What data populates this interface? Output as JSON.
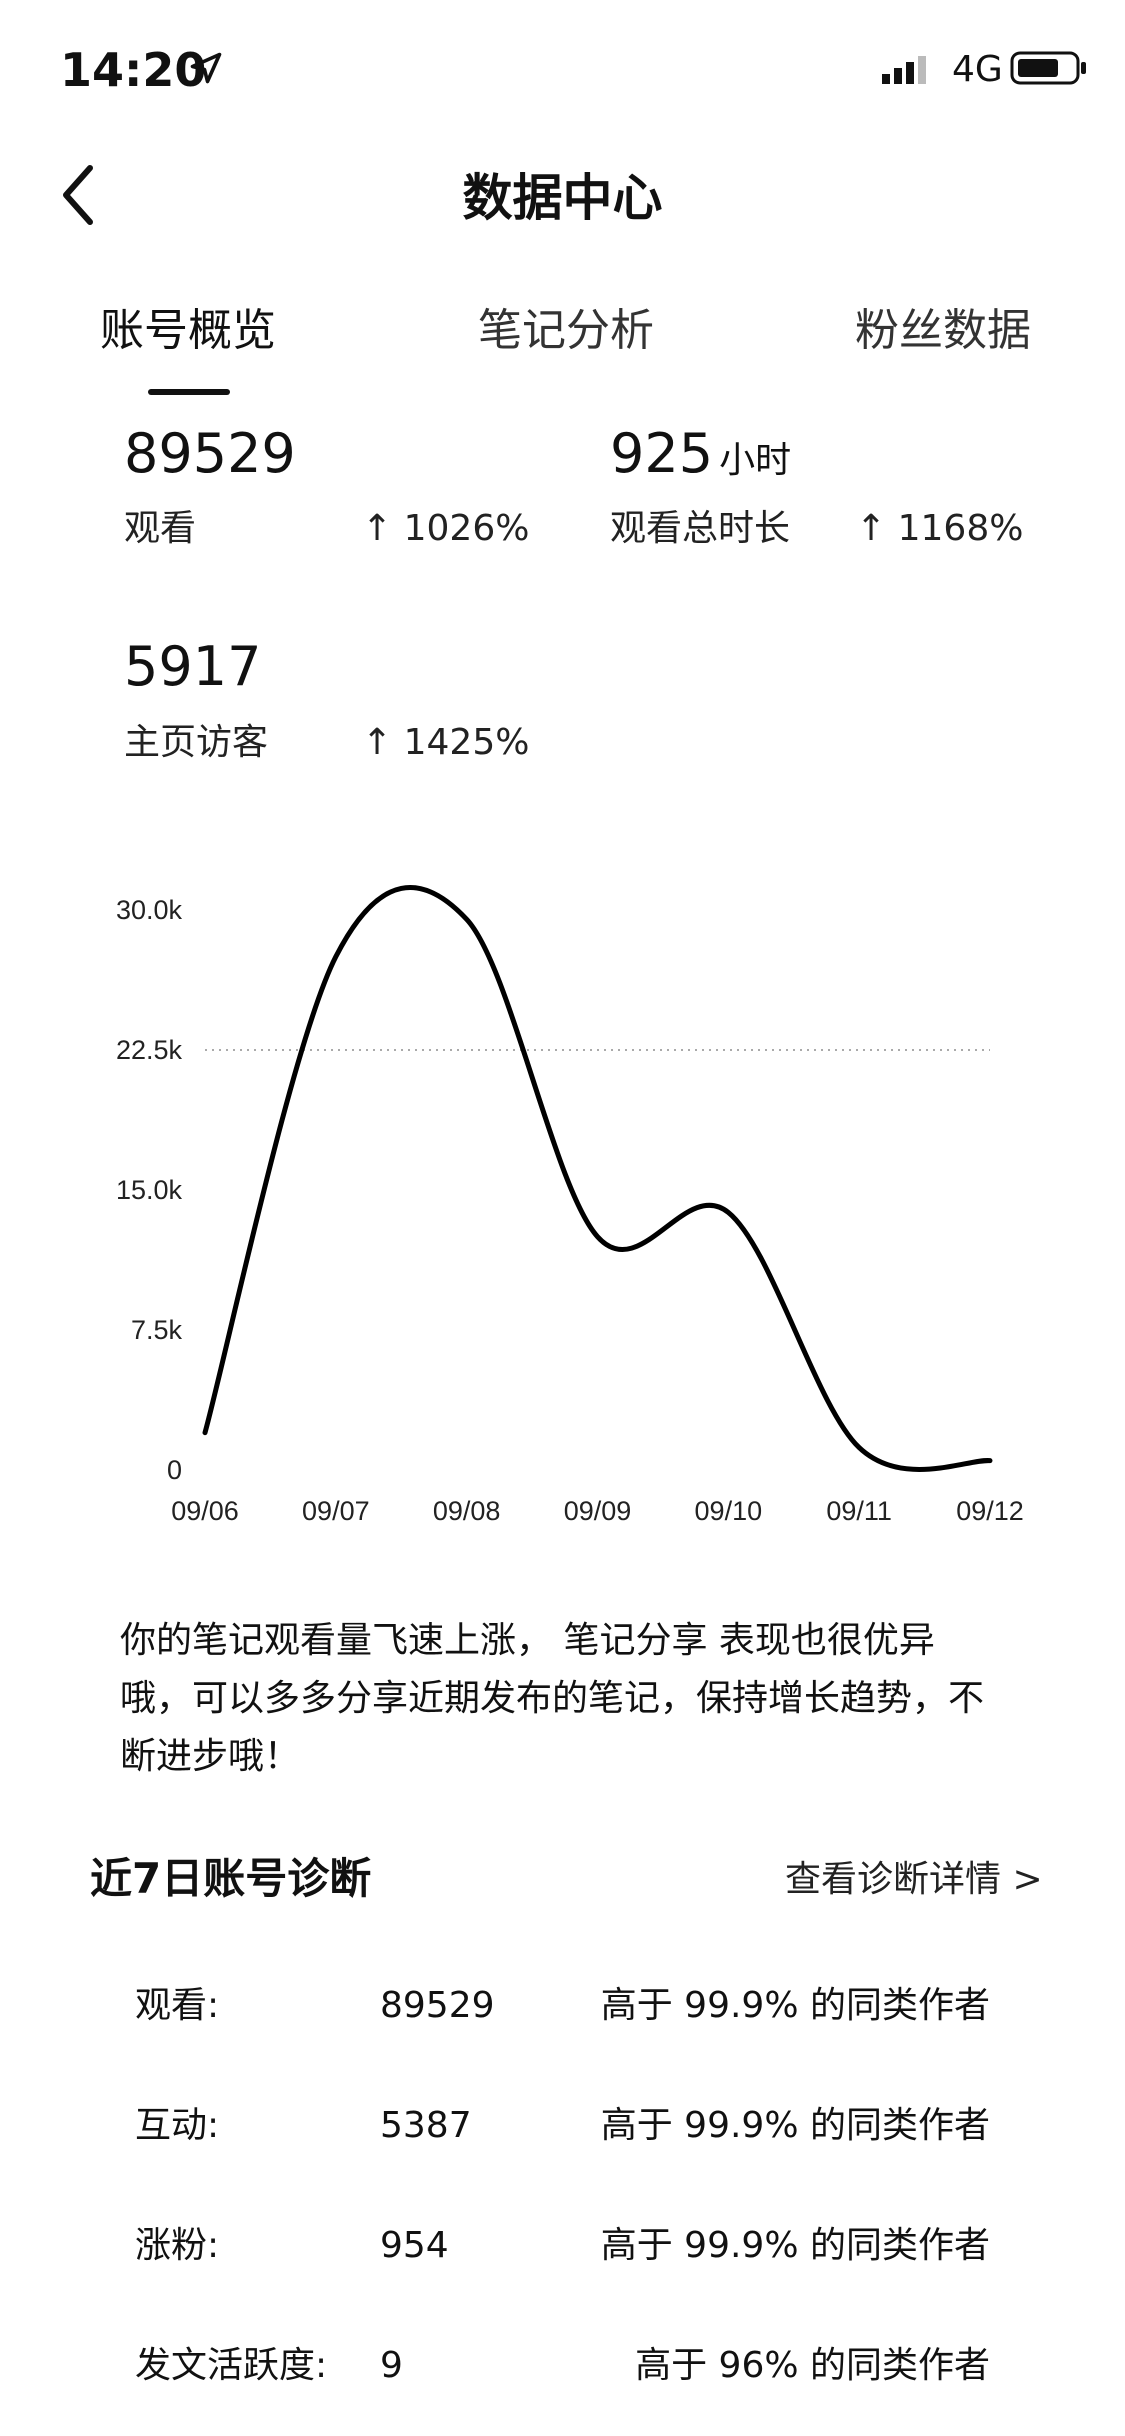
{
  "status_bar": {
    "time": "14:20",
    "network": "4G"
  },
  "nav": {
    "title": "数据中心"
  },
  "tabs": [
    {
      "label": "账号概览",
      "active": true
    },
    {
      "label": "笔记分析",
      "active": false
    },
    {
      "label": "粉丝数据",
      "active": false
    }
  ],
  "metrics": [
    {
      "value": "89529",
      "unit": "",
      "label": "观看",
      "change": "↑ 1026%"
    },
    {
      "value": "925",
      "unit": "小时",
      "label": "观看总时长",
      "change": "↑ 1168%"
    },
    {
      "value": "5917",
      "unit": "",
      "label": "主页访客",
      "change": "↑ 1425%"
    }
  ],
  "chart_data": {
    "type": "line",
    "categories": [
      "09/06",
      "09/07",
      "09/08",
      "09/09",
      "09/10",
      "09/11",
      "09/12"
    ],
    "values": [
      2000,
      27500,
      29500,
      12500,
      13800,
      1200,
      500
    ],
    "y_ticks": [
      "0",
      "7.5k",
      "15.0k",
      "22.5k",
      "30.0k"
    ],
    "ylim": [
      0,
      30000
    ],
    "grid": "dotted line at 22.5k",
    "line_color": "#000000"
  },
  "summary": {
    "lines": [
      "你的笔记观看量飞速上涨， 笔记分享 表现也很优异",
      "哦，可以多多分享近期发布的笔记，保持增长趋势，不",
      "断进步哦！"
    ]
  },
  "diagnosis": {
    "title": "近7日账号诊断",
    "link": "查看诊断详情 >",
    "rows": [
      {
        "label": "观看:",
        "value": "89529",
        "compare": "高于 99.9% 的同类作者"
      },
      {
        "label": "互动:",
        "value": "5387",
        "compare": "高于 99.9% 的同类作者"
      },
      {
        "label": "涨粉:",
        "value": "954",
        "compare": "高于 99.9% 的同类作者"
      },
      {
        "label": "发文活跃度:",
        "value": "9",
        "compare": "高于 96% 的同类作者"
      }
    ]
  }
}
